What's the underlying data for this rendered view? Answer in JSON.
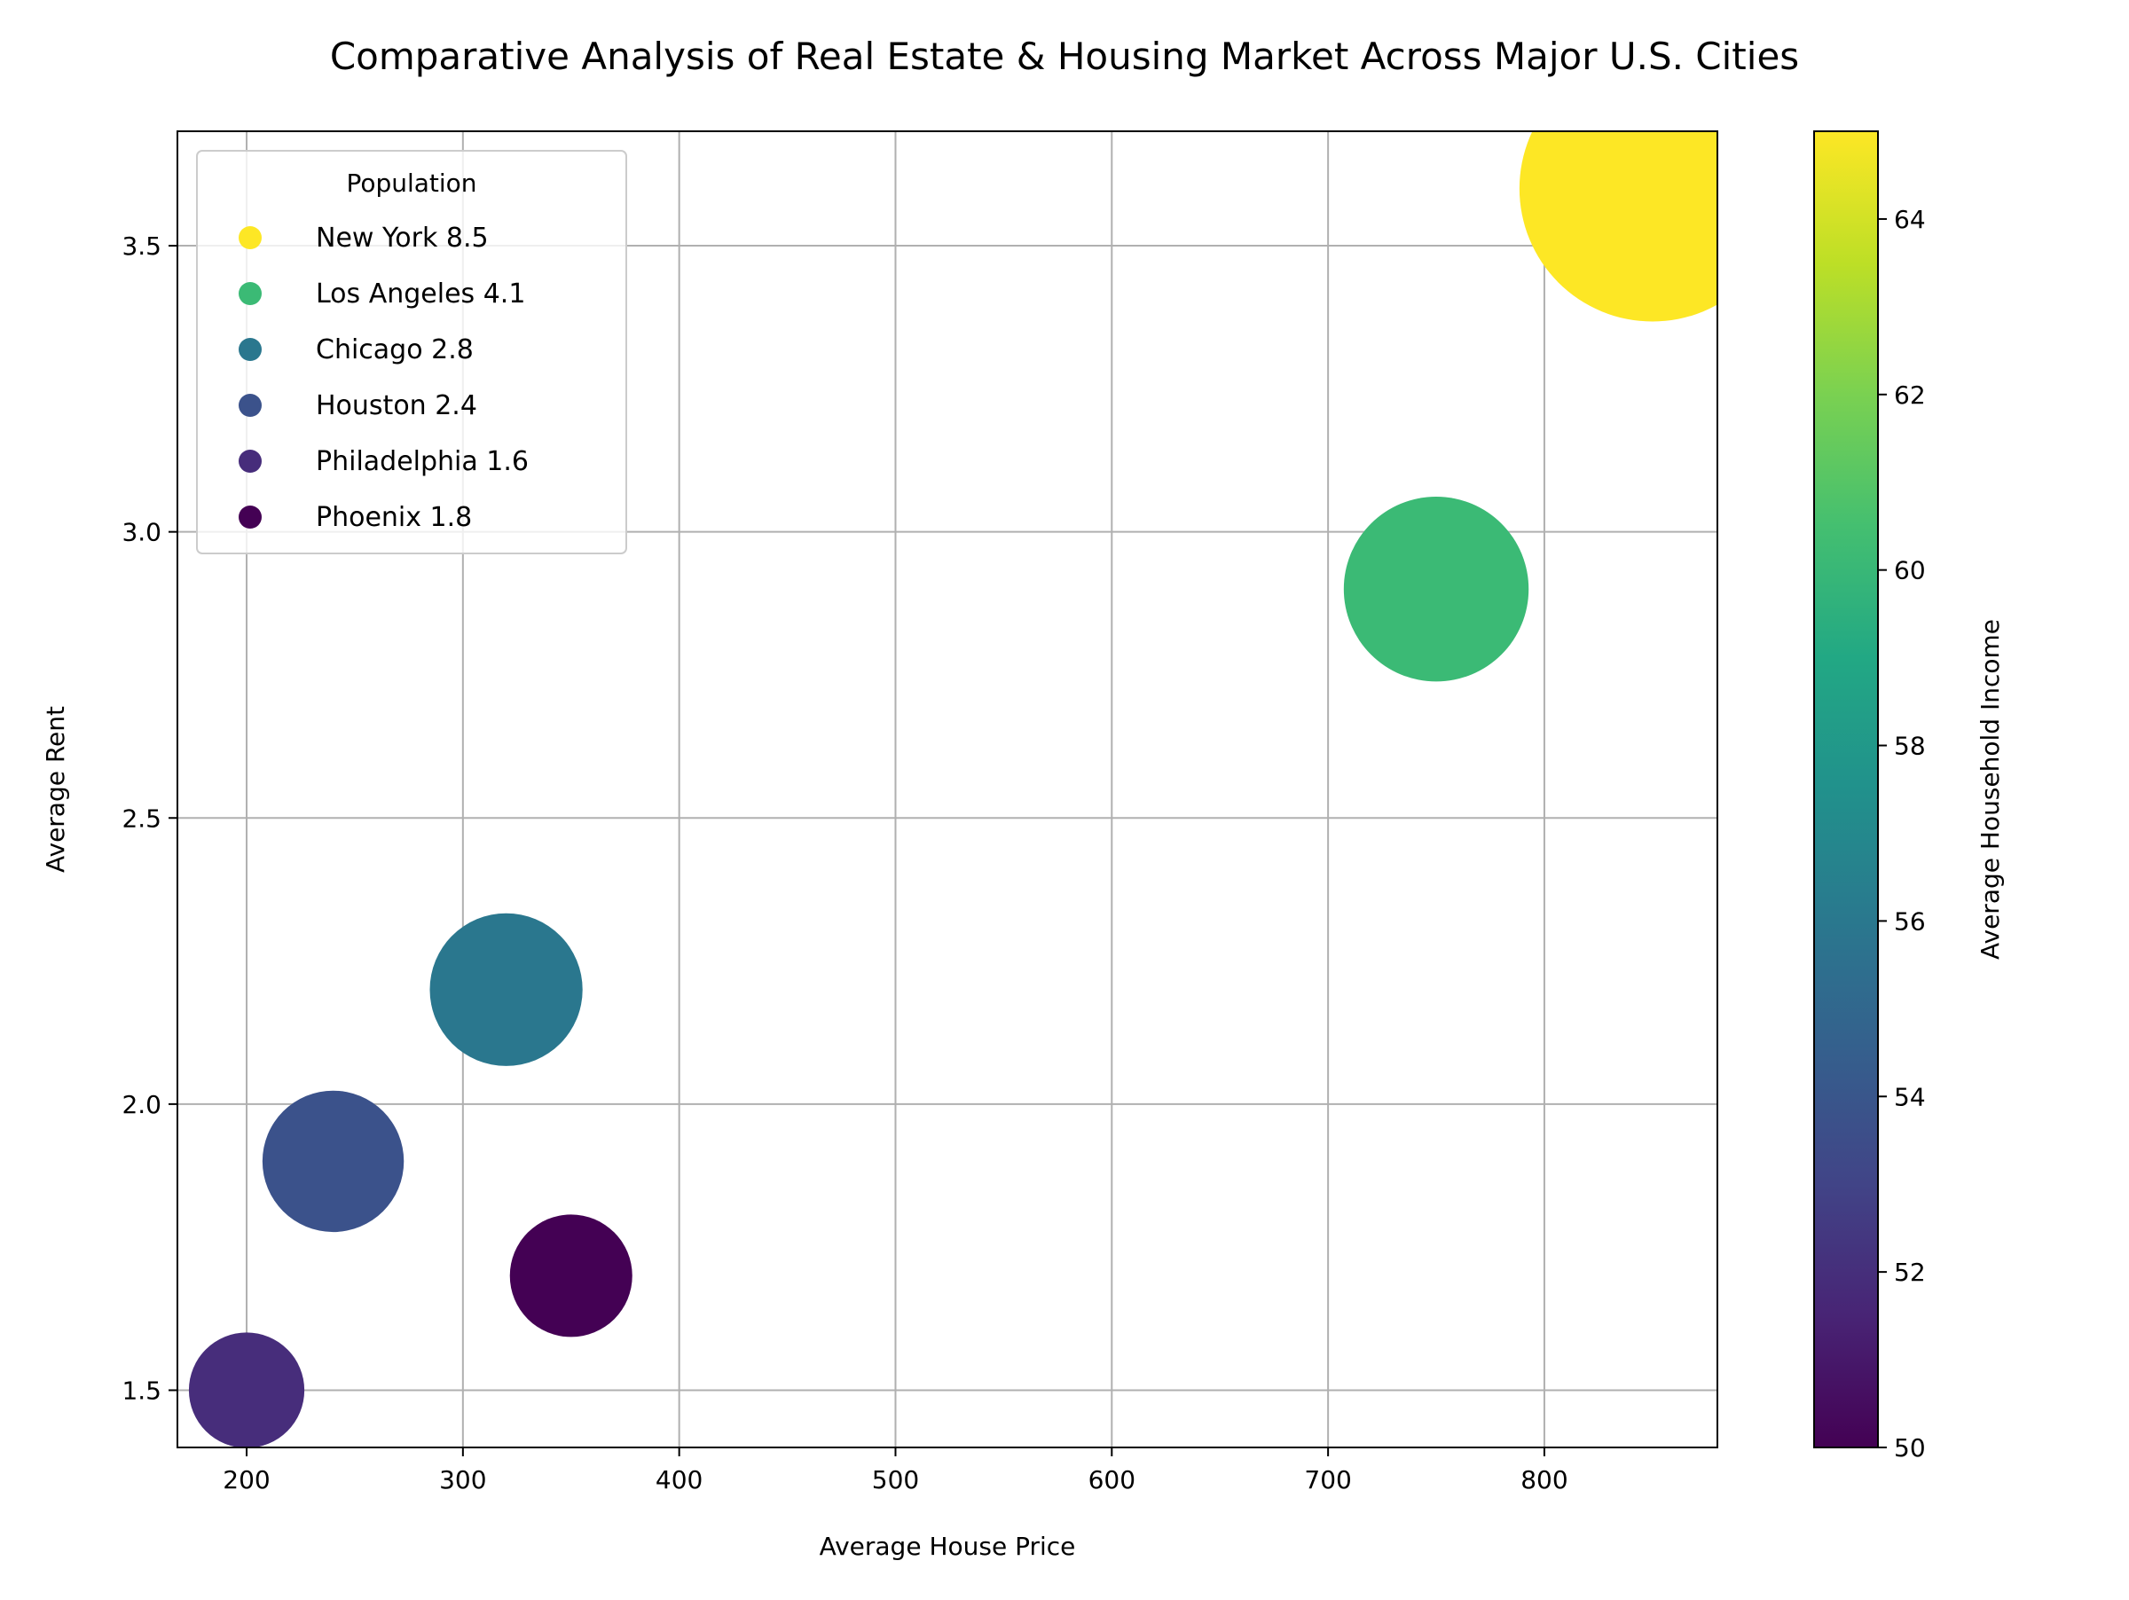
{
  "chart_data": {
    "type": "scatter",
    "title": "Comparative Analysis of Real Estate & Housing Market Across Major U.S. Cities",
    "xlabel": "Average House Price",
    "ylabel": "Average Rent",
    "xlim": [
      168,
      880
    ],
    "ylim": [
      1.4,
      3.7
    ],
    "xticks": [
      200,
      300,
      400,
      500,
      600,
      700,
      800
    ],
    "yticks": [
      1.5,
      2.0,
      2.5,
      3.0,
      3.5
    ],
    "grid": true,
    "legend": {
      "title": "Population",
      "placement": "top-left"
    },
    "colorbar": {
      "label": "Average Household Income",
      "range": [
        50,
        65
      ],
      "ticks": [
        50,
        52,
        54,
        56,
        58,
        60,
        62,
        64
      ],
      "colormap": "viridis"
    },
    "series": [
      {
        "name": "New York 8.5",
        "city": "New York",
        "population": 8.5,
        "x": 850,
        "y": 3.6,
        "income": 65,
        "color": "#fde725"
      },
      {
        "name": "Los Angeles 4.1",
        "city": "Los Angeles",
        "population": 4.1,
        "x": 750,
        "y": 2.9,
        "income": 60.5,
        "color": "#3bba75"
      },
      {
        "name": "Chicago 2.8",
        "city": "Chicago",
        "population": 2.8,
        "x": 320,
        "y": 2.2,
        "income": 55.5,
        "color": "#2a778e"
      },
      {
        "name": "Houston 2.4",
        "city": "Houston",
        "population": 2.4,
        "x": 240,
        "y": 1.9,
        "income": 53.5,
        "color": "#3b528b"
      },
      {
        "name": "Philadelphia 1.6",
        "city": "Philadelphia",
        "population": 1.6,
        "x": 200,
        "y": 1.5,
        "income": 52,
        "color": "#472d7b"
      },
      {
        "name": "Phoenix 1.8",
        "city": "Phoenix",
        "population": 1.8,
        "x": 350,
        "y": 1.7,
        "income": 50,
        "color": "#440154"
      }
    ]
  }
}
